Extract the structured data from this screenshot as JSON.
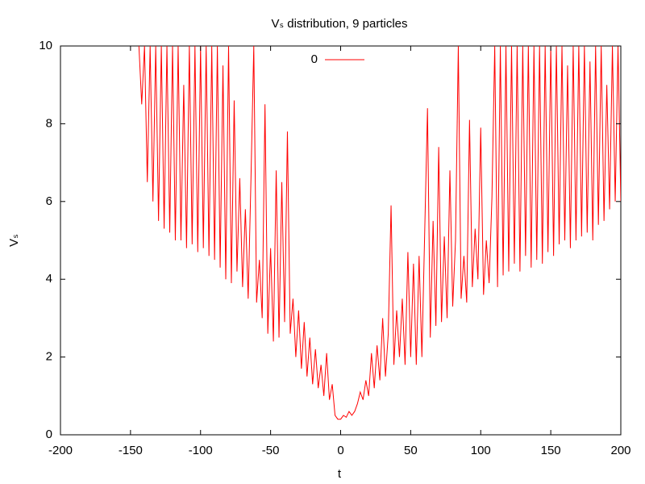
{
  "chart_data": {
    "type": "line",
    "title": "Vₛ distribution, 9 particles",
    "xlabel": "t",
    "ylabel": "Vₛ",
    "xlim": [
      -200,
      200
    ],
    "xticks": [
      -200,
      -150,
      -100,
      -50,
      0,
      50,
      100,
      150,
      200
    ],
    "ylim": [
      0,
      10
    ],
    "yticks": [
      0,
      2,
      4,
      6,
      8,
      10
    ],
    "legend": "top-center",
    "series": [
      {
        "name": "0",
        "color": "#ff0000",
        "x": [
          -144,
          -142,
          -140,
          -138,
          -136,
          -134,
          -132,
          -130,
          -128,
          -126,
          -124,
          -122,
          -120,
          -118,
          -116,
          -114,
          -112,
          -110,
          -108,
          -106,
          -104,
          -102,
          -100,
          -98,
          -96,
          -94,
          -92,
          -90,
          -88,
          -86,
          -84,
          -82,
          -80,
          -78,
          -76,
          -74,
          -72,
          -70,
          -68,
          -66,
          -64,
          -62,
          -60,
          -58,
          -56,
          -54,
          -52,
          -50,
          -48,
          -46,
          -44,
          -42,
          -40,
          -38,
          -36,
          -34,
          -32,
          -30,
          -28,
          -26,
          -24,
          -22,
          -20,
          -18,
          -16,
          -14,
          -12,
          -10,
          -8,
          -6,
          -4,
          -2,
          0,
          2,
          4,
          6,
          8,
          10,
          12,
          14,
          16,
          18,
          20,
          22,
          24,
          26,
          28,
          30,
          32,
          34,
          36,
          38,
          40,
          42,
          44,
          46,
          48,
          50,
          52,
          54,
          56,
          58,
          60,
          62,
          64,
          66,
          68,
          70,
          72,
          74,
          76,
          78,
          80,
          82,
          84,
          86,
          88,
          90,
          92,
          94,
          96,
          98,
          100,
          102,
          104,
          106,
          108,
          110,
          112,
          114,
          116,
          118,
          120,
          122,
          124,
          126,
          128,
          130,
          132,
          134,
          136,
          138,
          140,
          142,
          144,
          146,
          148,
          150,
          152,
          154,
          156,
          158,
          160,
          162,
          164,
          166,
          168,
          170,
          172,
          174,
          176,
          178,
          180,
          182,
          184,
          186,
          188,
          190,
          192,
          194,
          196,
          198,
          200
        ],
        "values": [
          10,
          8.5,
          10,
          6.5,
          10,
          6.0,
          10,
          5.5,
          10,
          5.3,
          10,
          5.2,
          10,
          5.0,
          10,
          5.0,
          9.0,
          4.8,
          10,
          4.9,
          10,
          4.7,
          10,
          4.8,
          10,
          4.6,
          10,
          4.5,
          10,
          4.3,
          9.5,
          4.0,
          10,
          3.9,
          8.6,
          4.2,
          6.6,
          3.8,
          5.8,
          3.5,
          6.6,
          10,
          3.4,
          4.5,
          3.0,
          8.5,
          2.6,
          4.8,
          2.4,
          6.8,
          2.5,
          6.5,
          2.9,
          7.8,
          2.6,
          3.5,
          2.0,
          3.2,
          1.7,
          2.9,
          1.5,
          2.5,
          1.3,
          2.2,
          1.2,
          1.8,
          1.0,
          2.1,
          0.9,
          1.3,
          0.5,
          0.4,
          0.4,
          0.5,
          0.45,
          0.6,
          0.5,
          0.6,
          0.8,
          1.1,
          0.9,
          1.4,
          1.0,
          2.1,
          1.2,
          2.3,
          1.4,
          3.0,
          1.5,
          2.6,
          5.9,
          1.8,
          3.2,
          2.0,
          3.5,
          1.8,
          4.7,
          2.0,
          4.4,
          1.8,
          4.6,
          2.0,
          5.2,
          8.4,
          2.5,
          5.5,
          2.8,
          7.4,
          2.9,
          5.1,
          3.0,
          6.8,
          3.3,
          5.0,
          10,
          3.5,
          4.6,
          3.4,
          8.1,
          3.8,
          5.3,
          4.0,
          7.9,
          3.6,
          5.0,
          3.9,
          6.1,
          10,
          3.8,
          10,
          4.1,
          10,
          4.2,
          10,
          4.4,
          10,
          4.2,
          10,
          4.6,
          10,
          4.3,
          10,
          4.5,
          10,
          4.4,
          10,
          4.7,
          10,
          4.6,
          10,
          4.9,
          10,
          5.0,
          9.5,
          4.8,
          10,
          5.0,
          10,
          5.1,
          10,
          5.2,
          9.6,
          5.0,
          10,
          5.4,
          10,
          5.5,
          9.0,
          5.8,
          10,
          6.0,
          10,
          6.0
        ]
      }
    ]
  }
}
